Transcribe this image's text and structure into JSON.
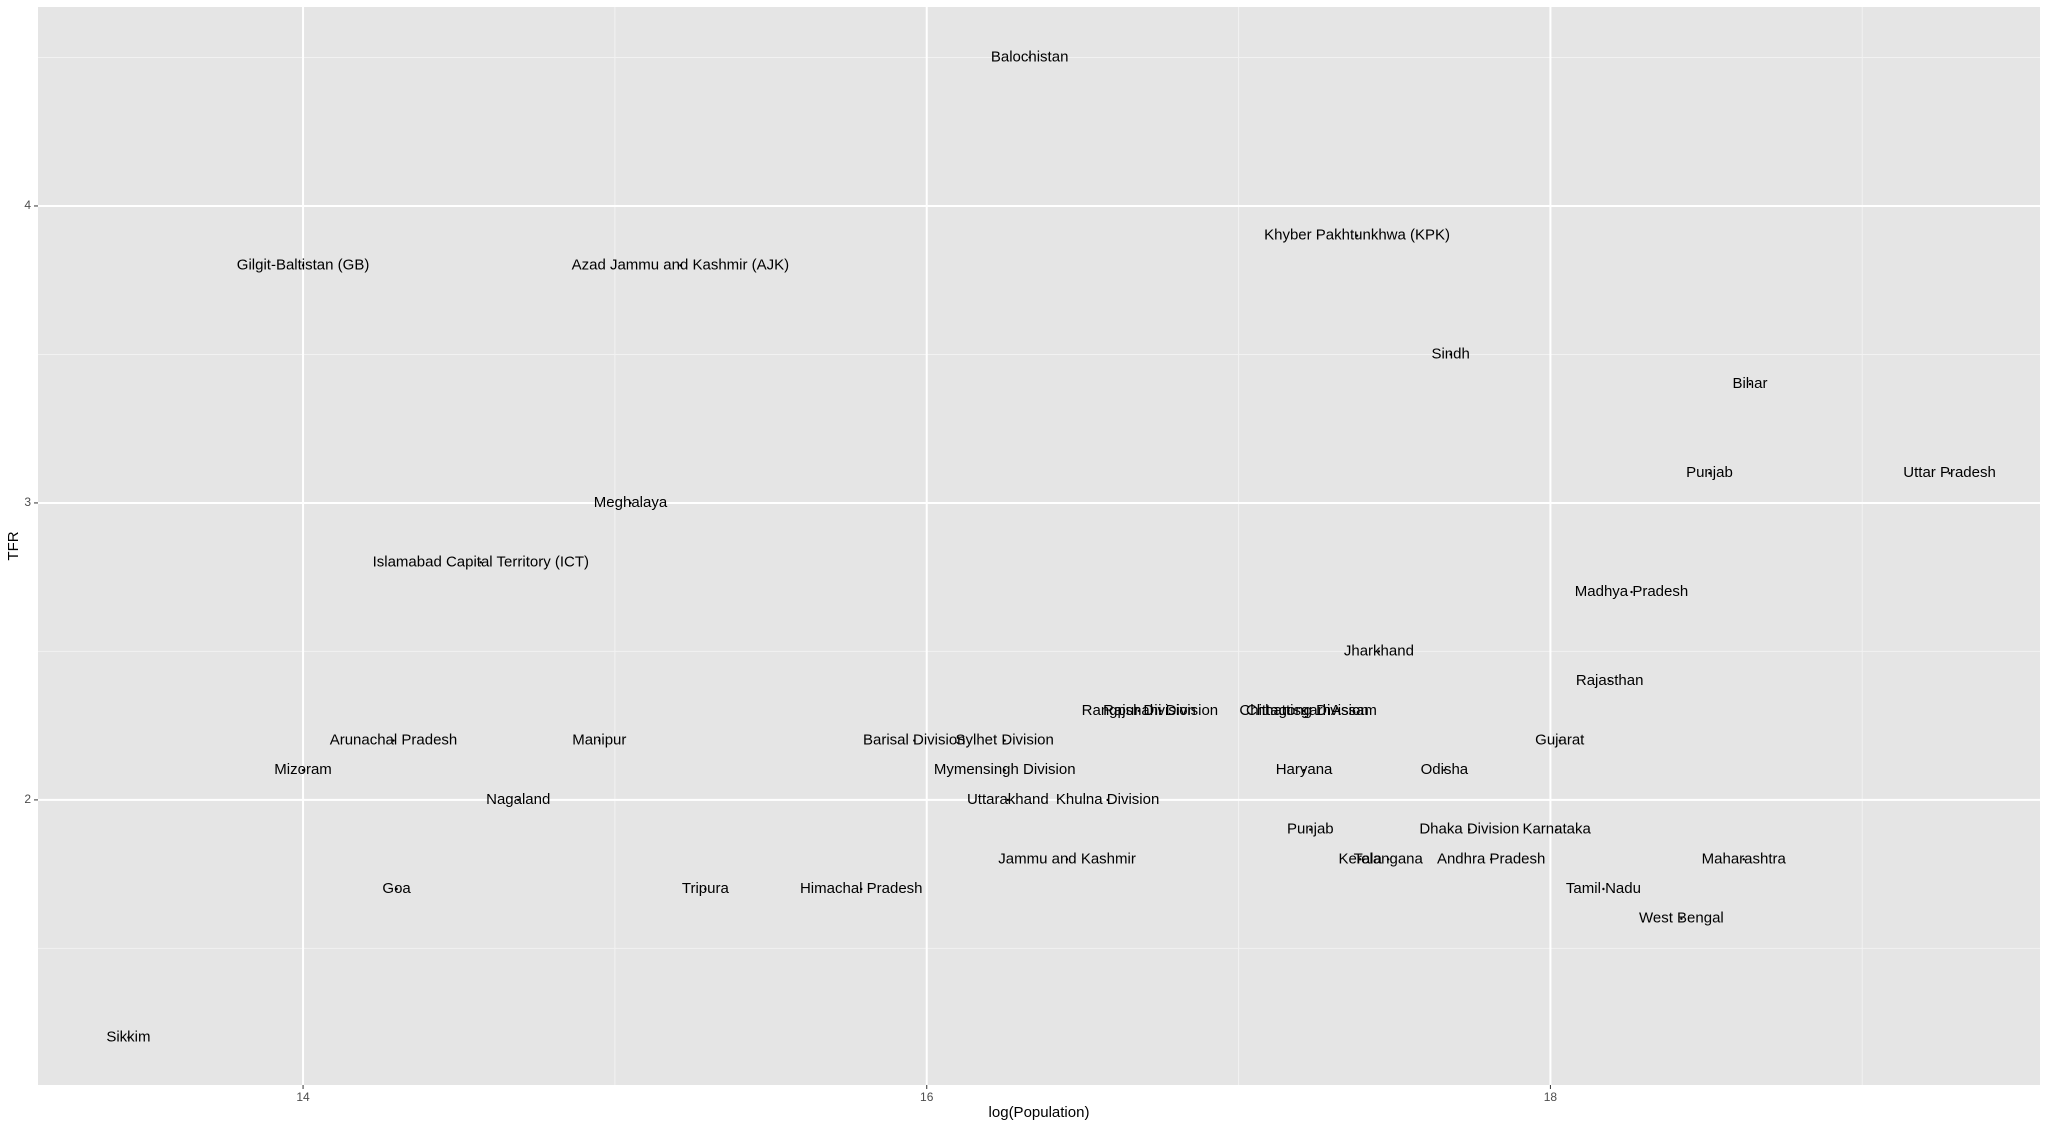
{
  "chart_data": {
    "type": "scatter",
    "x_label": "log(Population)",
    "y_label": "TFR",
    "xlim": [
      13.15,
      19.57
    ],
    "ylim": [
      1.04,
      4.67
    ],
    "xticks": [
      14,
      16,
      18
    ],
    "yticks": [
      2,
      3,
      4
    ],
    "grid": true,
    "labels": [
      "Balochistan",
      "Khyber Pakhtunkhwa (KPK)",
      "Gilgit-Baltistan (GB)",
      "Azad Jammu and Kashmir (AJK)",
      "Sindh",
      "Bihar",
      "Punjab",
      "Uttar Pradesh",
      "Meghalaya",
      "Islamabad Capital Territory (ICT)",
      "Madhya Pradesh",
      "Jharkhand",
      "Rajasthan",
      "Rangpur Division",
      "Rajshahi Division",
      "Chhattisgarh",
      "Chittagong Division",
      "Assam",
      "Arunachal Pradesh",
      "Manipur",
      "Barisal Division",
      "Sylhet Division",
      "Gujarat",
      "Mizoram",
      "Mymensingh Division",
      "Haryana",
      "Odisha",
      "Nagaland",
      "Uttarakhand",
      "Khulna Division",
      "Punjab",
      "Dhaka Division",
      "Karnataka",
      "Jammu and Kashmir",
      "Kerala",
      "Telangana",
      "Andhra Pradesh",
      "Maharashtra",
      "Goa",
      "Tripura",
      "Himachal Pradesh",
      "Tamil Nadu",
      "West Bengal",
      "Sikkim"
    ],
    "x": [
      16.33,
      17.38,
      14.0,
      15.21,
      17.68,
      18.64,
      18.51,
      19.28,
      15.05,
      14.57,
      18.26,
      17.45,
      18.19,
      16.68,
      16.75,
      17.16,
      17.21,
      17.37,
      14.29,
      14.95,
      15.96,
      16.25,
      18.03,
      14.0,
      16.25,
      17.21,
      17.66,
      14.69,
      16.26,
      16.58,
      17.23,
      17.74,
      18.02,
      16.45,
      17.39,
      17.48,
      17.81,
      18.62,
      14.3,
      15.29,
      15.79,
      18.17,
      18.42,
      13.44
    ],
    "y": [
      4.5,
      3.9,
      3.8,
      3.8,
      3.5,
      3.4,
      3.1,
      3.1,
      3.0,
      2.8,
      2.7,
      2.5,
      2.4,
      2.3,
      2.3,
      2.3,
      2.3,
      2.3,
      2.2,
      2.2,
      2.2,
      2.2,
      2.2,
      2.1,
      2.1,
      2.1,
      2.1,
      2.0,
      2.0,
      2.0,
      1.9,
      1.9,
      1.9,
      1.8,
      1.8,
      1.8,
      1.8,
      1.8,
      1.7,
      1.7,
      1.7,
      1.7,
      1.6,
      1.2
    ]
  }
}
